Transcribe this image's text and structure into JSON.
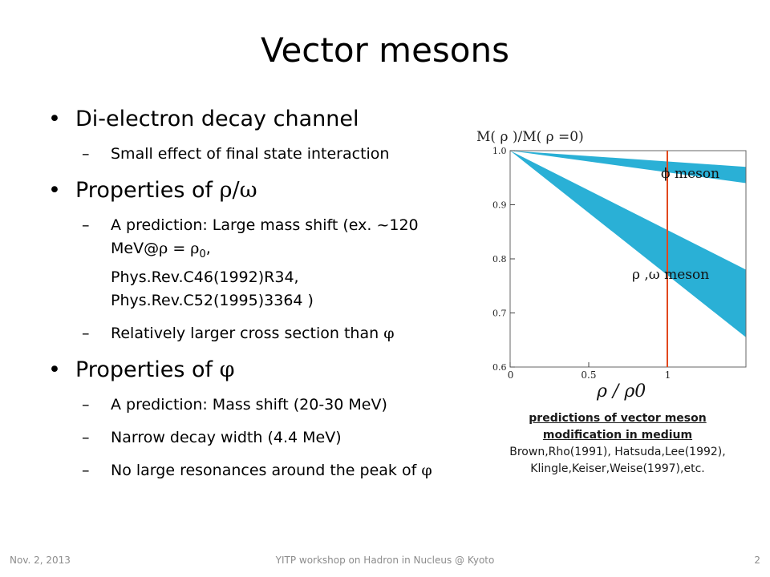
{
  "slide": {
    "title": "Vector mesons",
    "bullets": [
      {
        "label": "Di-electron decay channel",
        "subs": [
          "Small effect of final state interaction"
        ]
      },
      {
        "label_prefix": "Properties of",
        "label_symbol": "ρ/ω",
        "subs": [
          "A prediction: Large mass shift (ex. ~120 MeV@",
          "Relatively larger cross section than"
        ],
        "sub1_rho": "ρ",
        "sub1_eq": "= ",
        "sub1_rho0": "ρ",
        "sub1_rho0_sub": "0",
        "sub1_rest1": ",",
        "sub1_ref1": "Phys.Rev.C46(1992)R34,",
        "sub1_ref2": "Phys.Rev.C52(1995)3364 )",
        "sub2_symbol": "φ"
      },
      {
        "label_prefix": "Properties of",
        "label_symbol": "φ",
        "subs": [
          "A prediction: Mass shift (20-30 MeV)",
          "Narrow decay width (4.4 MeV)",
          "No large resonances around the peak of"
        ],
        "sub3_symbol": "φ"
      }
    ]
  },
  "chart_data": {
    "type": "area",
    "title": "M( ρ )/M( ρ =0)",
    "xlabel": "ρ / ρ0",
    "ylabel": "",
    "xlim": [
      0,
      1.5
    ],
    "ylim": [
      0.6,
      1.0
    ],
    "x_ticks": [
      "0",
      "0.5",
      "1"
    ],
    "y_ticks": [
      "1.0",
      "0.9",
      "0.8",
      "0.7",
      "0.6"
    ],
    "series": [
      {
        "name": "ϕ meson",
        "x": [
          0,
          1.5
        ],
        "upper": [
          1.0,
          0.97
        ],
        "lower": [
          1.0,
          0.94
        ],
        "color": "#2ab0d6"
      },
      {
        "name": "ρ ,ω meson",
        "x": [
          0,
          1.5
        ],
        "upper": [
          1.0,
          0.78
        ],
        "lower": [
          1.0,
          0.655
        ],
        "color": "#2ab0d6"
      }
    ],
    "vline": {
      "x": 1.0,
      "color": "#e2481c"
    },
    "grid": false
  },
  "caption": {
    "heading_line1": "predictions of vector meson",
    "heading_line2": "modification in medium",
    "refs_line1": "Brown,Rho(1991), Hatsuda,Lee(1992),",
    "refs_line2": "Klingle,Keiser,Weise(1997),etc."
  },
  "footer": {
    "date": "Nov. 2, 2013",
    "event": "YITP workshop on  Hadron in Nucleus @ Kyoto",
    "page": "2"
  }
}
